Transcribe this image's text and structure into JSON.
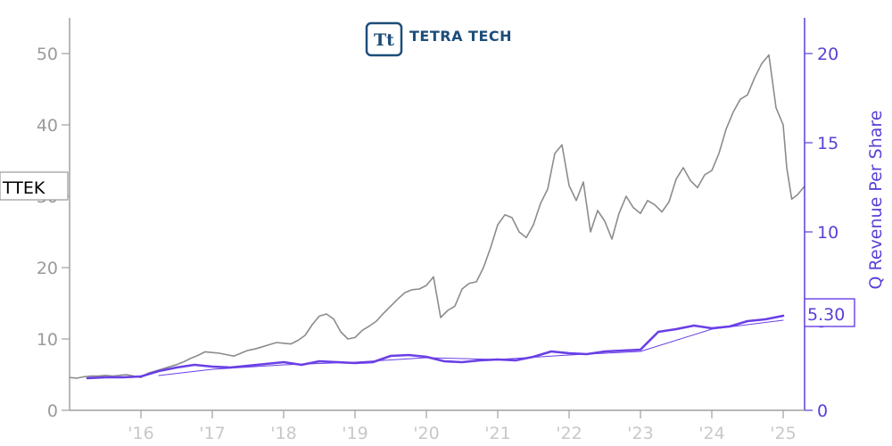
{
  "chart_data": {
    "type": "line",
    "logo": {
      "name": "tetra-tech-logo",
      "mark": "Tt",
      "text": "TETRA TECH",
      "color": "#1d4d7a"
    },
    "ticker_label": "TTEK",
    "last_value_label": "5.30",
    "ylabel_right": "Q Revenue Per Share",
    "colors": {
      "price": "#8c8c8c",
      "revenue": "#6a3fe6",
      "trend": "#6a3fe6",
      "left_axis": "#a0a0a0",
      "right_axis": "#5b3fd6",
      "x_ticks": "#c8c8c8"
    },
    "xlim": [
      2015.0,
      2025.3
    ],
    "ylim_left": [
      0,
      55
    ],
    "ylim_right": [
      0,
      22
    ],
    "x_ticks": [
      {
        "value": 2016,
        "label": "'16"
      },
      {
        "value": 2017,
        "label": "'17"
      },
      {
        "value": 2018,
        "label": "'18"
      },
      {
        "value": 2019,
        "label": "'19"
      },
      {
        "value": 2020,
        "label": "'20"
      },
      {
        "value": 2021,
        "label": "'21"
      },
      {
        "value": 2022,
        "label": "'22"
      },
      {
        "value": 2023,
        "label": "'23"
      },
      {
        "value": 2024,
        "label": "'24"
      },
      {
        "value": 2025,
        "label": "'25"
      }
    ],
    "y_ticks_left": [
      0,
      10,
      20,
      30,
      40,
      50
    ],
    "y_ticks_right": [
      0,
      5,
      10,
      15,
      20
    ],
    "series": [
      {
        "axis": "left",
        "points": [
          [
            2015.0,
            4.6
          ],
          [
            2015.1,
            4.5
          ],
          [
            2015.2,
            4.7
          ],
          [
            2015.3,
            4.8
          ],
          [
            2015.4,
            4.8
          ],
          [
            2015.5,
            4.9
          ],
          [
            2015.6,
            4.8
          ],
          [
            2015.7,
            4.9
          ],
          [
            2015.8,
            5.0
          ],
          [
            2015.9,
            4.8
          ],
          [
            2016.0,
            4.6
          ],
          [
            2016.1,
            5.2
          ],
          [
            2016.2,
            5.5
          ],
          [
            2016.3,
            5.8
          ],
          [
            2016.4,
            6.1
          ],
          [
            2016.5,
            6.4
          ],
          [
            2016.6,
            6.8
          ],
          [
            2016.7,
            7.3
          ],
          [
            2016.8,
            7.7
          ],
          [
            2016.9,
            8.2
          ],
          [
            2017.0,
            8.1
          ],
          [
            2017.1,
            8.0
          ],
          [
            2017.2,
            7.8
          ],
          [
            2017.3,
            7.6
          ],
          [
            2017.4,
            8.0
          ],
          [
            2017.5,
            8.4
          ],
          [
            2017.6,
            8.6
          ],
          [
            2017.7,
            8.9
          ],
          [
            2017.8,
            9.2
          ],
          [
            2017.9,
            9.5
          ],
          [
            2018.0,
            9.4
          ],
          [
            2018.1,
            9.3
          ],
          [
            2018.2,
            9.8
          ],
          [
            2018.3,
            10.5
          ],
          [
            2018.4,
            12.0
          ],
          [
            2018.5,
            13.2
          ],
          [
            2018.6,
            13.5
          ],
          [
            2018.7,
            12.8
          ],
          [
            2018.8,
            11.0
          ],
          [
            2018.9,
            10.0
          ],
          [
            2019.0,
            10.2
          ],
          [
            2019.1,
            11.2
          ],
          [
            2019.2,
            11.8
          ],
          [
            2019.3,
            12.5
          ],
          [
            2019.4,
            13.6
          ],
          [
            2019.5,
            14.6
          ],
          [
            2019.6,
            15.6
          ],
          [
            2019.7,
            16.5
          ],
          [
            2019.8,
            16.9
          ],
          [
            2019.9,
            17.0
          ],
          [
            2020.0,
            17.5
          ],
          [
            2020.1,
            18.7
          ],
          [
            2020.2,
            13.0
          ],
          [
            2020.3,
            14.0
          ],
          [
            2020.4,
            14.6
          ],
          [
            2020.5,
            17.0
          ],
          [
            2020.6,
            17.8
          ],
          [
            2020.7,
            18.0
          ],
          [
            2020.8,
            20.0
          ],
          [
            2020.9,
            22.8
          ],
          [
            2021.0,
            26.0
          ],
          [
            2021.1,
            27.4
          ],
          [
            2021.2,
            27.0
          ],
          [
            2021.3,
            25.0
          ],
          [
            2021.4,
            24.2
          ],
          [
            2021.5,
            26.0
          ],
          [
            2021.6,
            29.0
          ],
          [
            2021.7,
            31.0
          ],
          [
            2021.8,
            36.0
          ],
          [
            2021.9,
            37.2
          ],
          [
            2022.0,
            31.5
          ],
          [
            2022.1,
            29.4
          ],
          [
            2022.2,
            32.0
          ],
          [
            2022.3,
            25.0
          ],
          [
            2022.4,
            28.0
          ],
          [
            2022.5,
            26.5
          ],
          [
            2022.6,
            24.0
          ],
          [
            2022.7,
            27.6
          ],
          [
            2022.8,
            30.0
          ],
          [
            2022.9,
            28.4
          ],
          [
            2023.0,
            27.6
          ],
          [
            2023.1,
            29.4
          ],
          [
            2023.2,
            28.8
          ],
          [
            2023.3,
            27.8
          ],
          [
            2023.4,
            29.2
          ],
          [
            2023.5,
            32.4
          ],
          [
            2023.6,
            34.0
          ],
          [
            2023.7,
            32.2
          ],
          [
            2023.8,
            31.2
          ],
          [
            2023.9,
            33.0
          ],
          [
            2024.0,
            33.6
          ],
          [
            2024.1,
            36.0
          ],
          [
            2024.2,
            39.4
          ],
          [
            2024.3,
            41.8
          ],
          [
            2024.4,
            43.6
          ],
          [
            2024.5,
            44.2
          ],
          [
            2024.6,
            46.6
          ],
          [
            2024.7,
            48.6
          ],
          [
            2024.8,
            49.8
          ],
          [
            2024.9,
            42.4
          ],
          [
            2025.0,
            40.0
          ],
          [
            2025.05,
            34.0
          ],
          [
            2025.12,
            29.6
          ],
          [
            2025.2,
            30.2
          ],
          [
            2025.3,
            31.4
          ]
        ]
      },
      {
        "axis": "right",
        "points": [
          [
            2015.25,
            1.8
          ],
          [
            2015.5,
            1.85
          ],
          [
            2015.75,
            1.85
          ],
          [
            2016.0,
            1.9
          ],
          [
            2016.25,
            2.2
          ],
          [
            2016.5,
            2.4
          ],
          [
            2016.75,
            2.55
          ],
          [
            2017.0,
            2.45
          ],
          [
            2017.25,
            2.4
          ],
          [
            2017.5,
            2.5
          ],
          [
            2017.75,
            2.6
          ],
          [
            2018.0,
            2.7
          ],
          [
            2018.25,
            2.55
          ],
          [
            2018.5,
            2.75
          ],
          [
            2018.75,
            2.7
          ],
          [
            2019.0,
            2.65
          ],
          [
            2019.25,
            2.7
          ],
          [
            2019.5,
            3.05
          ],
          [
            2019.75,
            3.1
          ],
          [
            2020.0,
            3.0
          ],
          [
            2020.25,
            2.75
          ],
          [
            2020.5,
            2.7
          ],
          [
            2020.75,
            2.8
          ],
          [
            2021.0,
            2.85
          ],
          [
            2021.25,
            2.8
          ],
          [
            2021.5,
            3.0
          ],
          [
            2021.75,
            3.3
          ],
          [
            2022.0,
            3.2
          ],
          [
            2022.25,
            3.15
          ],
          [
            2022.5,
            3.3
          ],
          [
            2022.75,
            3.35
          ],
          [
            2023.0,
            3.4
          ],
          [
            2023.25,
            4.4
          ],
          [
            2023.5,
            4.55
          ],
          [
            2023.75,
            4.75
          ],
          [
            2024.0,
            4.6
          ],
          [
            2024.25,
            4.7
          ],
          [
            2024.5,
            5.0
          ],
          [
            2024.75,
            5.1
          ],
          [
            2025.0,
            5.3
          ]
        ]
      },
      {
        "axis": "right",
        "points": [
          [
            2016.25,
            1.95
          ],
          [
            2017.0,
            2.3
          ],
          [
            2018.0,
            2.55
          ],
          [
            2019.0,
            2.7
          ],
          [
            2020.0,
            2.95
          ],
          [
            2021.0,
            2.85
          ],
          [
            2022.0,
            3.1
          ],
          [
            2023.0,
            3.3
          ],
          [
            2024.0,
            4.55
          ],
          [
            2025.0,
            5.05
          ]
        ]
      }
    ]
  }
}
